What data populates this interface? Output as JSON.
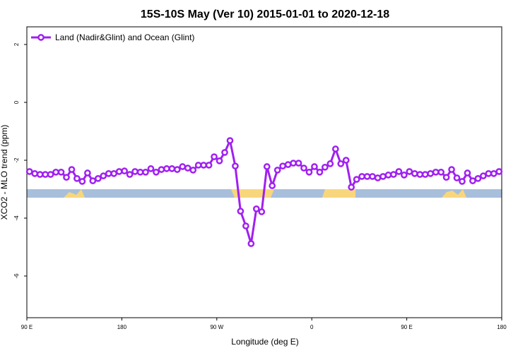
{
  "chart_data": {
    "type": "line",
    "title": "15S-10S May (Ver 10)   2015-01-01 to 2020-12-18",
    "x_label": "Longitude (deg E)",
    "y_label": "XCO2 - MLO trend (ppm)",
    "x": [
      92.5,
      97.5,
      102.5,
      107.5,
      112.5,
      117.5,
      122.5,
      127.5,
      132.5,
      137.5,
      142.5,
      147.5,
      152.5,
      157.5,
      162.5,
      167.5,
      172.5,
      177.5,
      182.5,
      187.5,
      192.5,
      197.5,
      202.5,
      207.5,
      212.5,
      217.5,
      222.5,
      227.5,
      232.5,
      237.5,
      242.5,
      247.5,
      252.5,
      257.5,
      262.5,
      267.5,
      272.5,
      277.5,
      282.5,
      287.5,
      292.5,
      297.5,
      302.5,
      307.5,
      312.5,
      317.5,
      322.5,
      327.5,
      332.5,
      337.5,
      342.5,
      347.5,
      352.5,
      357.5,
      362.5,
      367.5,
      372.5,
      377.5,
      382.5,
      387.5,
      392.5,
      397.5,
      402.5,
      407.5,
      412.5,
      417.5,
      422.5,
      427.5,
      432.5,
      437.5,
      442.5,
      447.5,
      452.5,
      457.5,
      462.5,
      467.5,
      472.5,
      477.5,
      482.5,
      487.5,
      492.5,
      497.5,
      502.5,
      507.5,
      512.5,
      517.5,
      522.5,
      527.5,
      532.5,
      537.5
    ],
    "series": [
      {
        "name": "Land (Nadir&Glint) and Ocean (Glint)",
        "color": "#a020f0",
        "values": [
          -2.39,
          -2.46,
          -2.49,
          -2.49,
          -2.49,
          -2.41,
          -2.41,
          -2.59,
          -2.32,
          -2.63,
          -2.73,
          -2.44,
          -2.71,
          -2.63,
          -2.54,
          -2.46,
          -2.46,
          -2.39,
          -2.37,
          -2.49,
          -2.39,
          -2.41,
          -2.41,
          -2.29,
          -2.41,
          -2.32,
          -2.29,
          -2.29,
          -2.32,
          -2.22,
          -2.27,
          -2.34,
          -2.17,
          -2.17,
          -2.17,
          -1.88,
          -2.02,
          -1.73,
          -1.32,
          -2.2,
          -3.76,
          -4.27,
          -4.88,
          -3.68,
          -3.78,
          -2.22,
          -2.88,
          -2.34,
          -2.2,
          -2.15,
          -2.1,
          -2.1,
          -2.27,
          -2.41,
          -2.22,
          -2.41,
          -2.24,
          -2.12,
          -1.61,
          -2.12,
          -2.0,
          -2.93,
          -2.66,
          -2.56,
          -2.56,
          -2.56,
          -2.61,
          -2.56,
          -2.51,
          -2.49,
          -2.39,
          -2.51,
          -2.39,
          -2.46,
          -2.49,
          -2.49,
          -2.46,
          -2.41,
          -2.41,
          -2.59,
          -2.32,
          -2.61,
          -2.73,
          -2.44,
          -2.71,
          -2.63,
          -2.54,
          -2.46,
          -2.46,
          -2.39
        ]
      }
    ],
    "xlim": [
      90,
      540
    ],
    "xticks": [
      {
        "value": 90,
        "label": "90 E"
      },
      {
        "value": 180,
        "label": "180"
      },
      {
        "value": 270,
        "label": "90 W"
      },
      {
        "value": 360,
        "label": "0"
      },
      {
        "value": 450,
        "label": "90 E"
      },
      {
        "value": 540,
        "label": "180"
      }
    ],
    "ylim": [
      -7.44,
      2.61
    ],
    "yticks": [
      2,
      0,
      -2,
      -4,
      -6
    ],
    "legend": "top-left"
  }
}
